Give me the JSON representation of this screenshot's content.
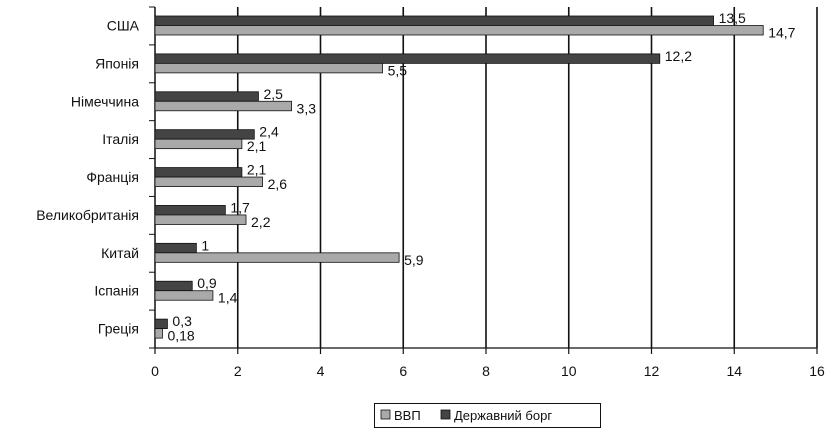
{
  "colors": {
    "background": "#ffffff",
    "gridline": "#111111",
    "axis": "#111111",
    "debt": "#444444",
    "gdp": "#a9a9a9",
    "bar_stroke": "#111111",
    "text": "#111111"
  },
  "chart_data": {
    "type": "bar",
    "orientation": "horizontal",
    "categories": [
      "США",
      "Японія",
      "Німеччина",
      "Італія",
      "Франція",
      "Великобританія",
      "Китай",
      "Іспанія",
      "Греція"
    ],
    "series": [
      {
        "name": "Державний борг",
        "color": "#444444",
        "values": [
          13.5,
          12.2,
          2.5,
          2.4,
          2.1,
          1.7,
          1,
          0.9,
          0.3
        ],
        "labels": [
          "13,5",
          "12,2",
          "2,5",
          "2,4",
          "2,1",
          "1,7",
          "1",
          "0,9",
          "0,3"
        ]
      },
      {
        "name": "ВВП",
        "color": "#a9a9a9",
        "values": [
          14.7,
          5.5,
          3.3,
          2.1,
          2.6,
          2.2,
          5.9,
          1.4,
          0.18
        ],
        "labels": [
          "14,7",
          "5,5",
          "3,3",
          "2,1",
          "2,6",
          "2,2",
          "5,9",
          "1,4",
          "0,18"
        ]
      }
    ],
    "xticks": [
      "0",
      "2",
      "4",
      "6",
      "8",
      "10",
      "12",
      "14",
      "16"
    ],
    "xlim": [
      0,
      16
    ],
    "grid": true,
    "legend_position": "bottom",
    "legend": [
      {
        "label": "ВВП",
        "color": "#a9a9a9"
      },
      {
        "label": "Державний борг",
        "color": "#444444"
      }
    ]
  }
}
